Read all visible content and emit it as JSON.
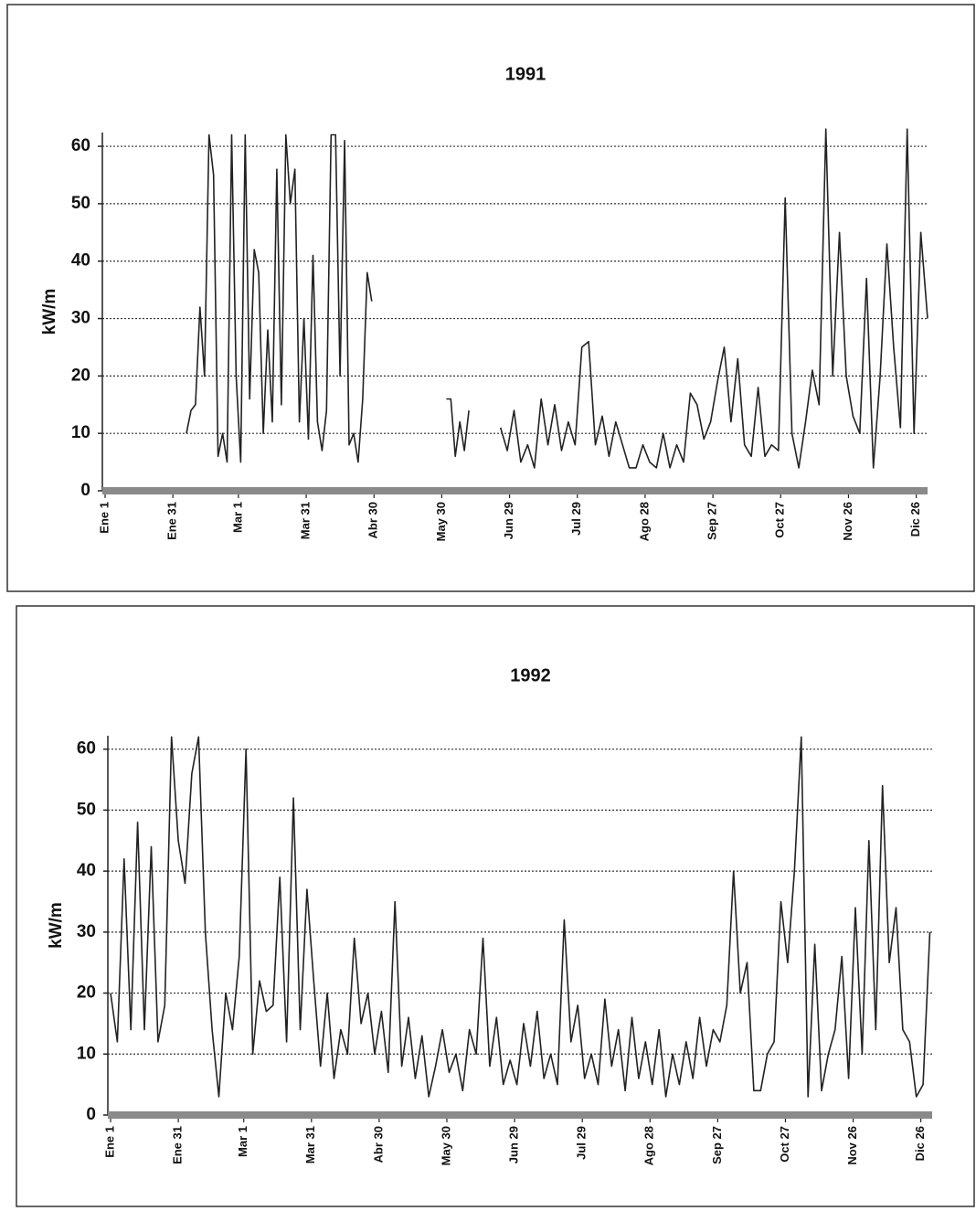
{
  "chart_data": [
    {
      "type": "line",
      "title": "1991",
      "y_label": "kW/m",
      "xlim": [
        0,
        364
      ],
      "ylim": [
        0,
        62.4
      ],
      "grid": true,
      "yticks": [
        0,
        10,
        20,
        30,
        40,
        50,
        60
      ],
      "xticks": [
        {
          "value": 0,
          "label": "Ene 1"
        },
        {
          "value": 30,
          "label": "Ene 31"
        },
        {
          "value": 59,
          "label": "Mar 1"
        },
        {
          "value": 89,
          "label": "Mar 31"
        },
        {
          "value": 119,
          "label": "Abr 30"
        },
        {
          "value": 149,
          "label": "May 30"
        },
        {
          "value": 179,
          "label": "Jun 29"
        },
        {
          "value": 209,
          "label": "Jul 29"
        },
        {
          "value": 239,
          "label": "Ago 28"
        },
        {
          "value": 269,
          "label": "Sep 27"
        },
        {
          "value": 299,
          "label": "Oct 27"
        },
        {
          "value": 329,
          "label": "Nov 26"
        },
        {
          "value": 359,
          "label": "Dic 26"
        }
      ],
      "series": [
        {
          "color": "#222222",
          "x": [
            36,
            38,
            40,
            42,
            44,
            46,
            48,
            50,
            52,
            54,
            56,
            58,
            60,
            62,
            64,
            66,
            68,
            70,
            72,
            74,
            76,
            78,
            80,
            82,
            84,
            86,
            88,
            90,
            92,
            94,
            96,
            98,
            100,
            102,
            104,
            106,
            108,
            110,
            112,
            114,
            116,
            118,
            135,
            151,
            153,
            155,
            157,
            159,
            161,
            168,
            175,
            178,
            181,
            184,
            187,
            190,
            193,
            196,
            199,
            202,
            205,
            208,
            211,
            214,
            217,
            220,
            223,
            226,
            229,
            232,
            235,
            238,
            241,
            244,
            247,
            250,
            253,
            256,
            259,
            262,
            265,
            268,
            271,
            274,
            277,
            280,
            283,
            286,
            289,
            292,
            295,
            298,
            301,
            304,
            307,
            310,
            313,
            316,
            319,
            322,
            325,
            328,
            331,
            334,
            337,
            340,
            343,
            346,
            349,
            352,
            355,
            358,
            361,
            364
          ],
          "values": [
            10,
            14,
            15,
            32,
            20,
            62,
            55,
            6,
            10,
            5,
            62,
            20,
            5,
            62,
            16,
            42,
            38,
            10,
            28,
            12,
            56,
            15,
            62,
            50,
            56,
            12,
            30,
            9,
            41,
            12,
            7,
            14,
            62,
            62,
            20,
            61,
            8,
            10,
            5,
            16,
            38,
            33,
            null,
            16,
            16,
            6,
            12,
            7,
            14,
            null,
            11,
            7,
            14,
            5,
            8,
            4,
            16,
            8,
            15,
            7,
            12,
            8,
            25,
            26,
            8,
            13,
            6,
            12,
            8,
            4,
            4,
            8,
            5,
            4,
            10,
            4,
            8,
            5,
            17,
            15,
            9,
            12,
            19,
            25,
            12,
            23,
            8,
            6,
            18,
            6,
            8,
            7,
            51,
            10,
            4,
            12,
            21,
            15,
            63,
            20,
            45,
            20,
            13,
            10,
            37,
            4,
            20,
            43,
            25,
            11,
            63,
            10,
            45,
            30
          ]
        }
      ]
    },
    {
      "type": "line",
      "title": "1992",
      "y_label": "kW/m",
      "xlim": [
        0,
        364
      ],
      "ylim": [
        0,
        62.2
      ],
      "grid": true,
      "yticks": [
        0,
        10,
        20,
        30,
        40,
        50,
        60
      ],
      "xticks": [
        {
          "value": 0,
          "label": "Ene 1"
        },
        {
          "value": 30,
          "label": "Ene 31"
        },
        {
          "value": 59,
          "label": "Mar 1"
        },
        {
          "value": 89,
          "label": "Mar 31"
        },
        {
          "value": 119,
          "label": "Abr 30"
        },
        {
          "value": 149,
          "label": "May 30"
        },
        {
          "value": 179,
          "label": "Jun 29"
        },
        {
          "value": 209,
          "label": "Jul 29"
        },
        {
          "value": 239,
          "label": "Ago 28"
        },
        {
          "value": 269,
          "label": "Sep 27"
        },
        {
          "value": 299,
          "label": "Oct 27"
        },
        {
          "value": 329,
          "label": "Nov 26"
        },
        {
          "value": 359,
          "label": "Dic 26"
        }
      ],
      "series": [
        {
          "color": "#222222",
          "x": [
            0,
            3,
            6,
            9,
            12,
            15,
            18,
            21,
            24,
            27,
            30,
            33,
            36,
            39,
            42,
            45,
            48,
            51,
            54,
            57,
            60,
            63,
            66,
            69,
            72,
            75,
            78,
            81,
            84,
            87,
            90,
            93,
            96,
            99,
            102,
            105,
            108,
            111,
            114,
            117,
            120,
            123,
            126,
            129,
            132,
            135,
            138,
            141,
            144,
            147,
            150,
            153,
            156,
            159,
            162,
            165,
            168,
            171,
            174,
            177,
            180,
            183,
            186,
            189,
            192,
            195,
            198,
            201,
            204,
            207,
            210,
            213,
            216,
            219,
            222,
            225,
            228,
            231,
            234,
            237,
            240,
            243,
            246,
            249,
            252,
            255,
            258,
            261,
            264,
            267,
            270,
            273,
            276,
            279,
            282,
            285,
            288,
            291,
            294,
            297,
            300,
            303,
            306,
            309,
            312,
            315,
            318,
            321,
            324,
            327,
            330,
            333,
            336,
            339,
            342,
            345,
            348,
            351,
            354,
            357,
            360,
            363
          ],
          "values": [
            20,
            12,
            42,
            14,
            48,
            14,
            44,
            12,
            18,
            62,
            45,
            38,
            56,
            62,
            30,
            14,
            3,
            20,
            14,
            26,
            60,
            10,
            22,
            17,
            18,
            39,
            12,
            52,
            14,
            37,
            22,
            8,
            20,
            6,
            14,
            10,
            29,
            15,
            20,
            10,
            17,
            7,
            35,
            8,
            16,
            6,
            13,
            3,
            8,
            14,
            7,
            10,
            4,
            14,
            10,
            29,
            8,
            16,
            5,
            9,
            5,
            15,
            8,
            17,
            6,
            10,
            5,
            32,
            12,
            18,
            6,
            10,
            5,
            19,
            8,
            14,
            4,
            16,
            6,
            12,
            5,
            14,
            3,
            10,
            5,
            12,
            6,
            16,
            8,
            14,
            12,
            18,
            40,
            20,
            25,
            4,
            4,
            10,
            12,
            35,
            25,
            40,
            62,
            3,
            28,
            4,
            10,
            14,
            26,
            6,
            34,
            10,
            45,
            14,
            54,
            25,
            34,
            14,
            12,
            3,
            5,
            30
          ]
        }
      ]
    }
  ]
}
